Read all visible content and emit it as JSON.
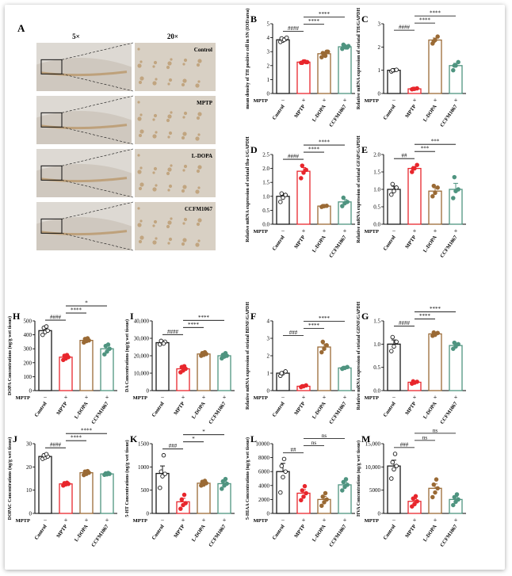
{
  "colors": {
    "control": "#1a1a1a",
    "mptp": "#e8262c",
    "ldopa": "#9a6a35",
    "ccfm": "#4f9480",
    "tissue_bg": "#ddd9d3",
    "tissue_stain": "#b9976a"
  },
  "conditions": [
    "Control",
    "MPTP",
    "L-DOPA",
    "CCFM1067"
  ],
  "mptp_label": "MPTP",
  "mptp_signs": [
    "−",
    "+",
    "+",
    "+"
  ],
  "histology": {
    "panel_letter": "A",
    "col_left": "5×",
    "col_right": "20×",
    "row_labels": [
      "Control",
      "MPTP",
      "L-DOPA",
      "CCFM1067"
    ]
  },
  "chart_data": [
    {
      "panel": "B",
      "type": "bar",
      "ylabel": "mean density of TH positive cell in SN (IOD/area)",
      "ylim": [
        0,
        5
      ],
      "yticks": [
        "0",
        "1",
        "2",
        "3",
        "4",
        "5"
      ],
      "values": [
        3.85,
        2.25,
        2.85,
        3.35
      ],
      "points": [
        [
          3.7,
          3.8,
          3.9,
          3.95,
          3.85,
          4.0
        ],
        [
          2.2,
          2.3,
          2.25,
          2.2,
          2.3,
          2.25
        ],
        [
          2.6,
          2.8,
          3.0,
          2.9,
          2.7,
          3.0
        ],
        [
          3.2,
          3.4,
          3.3,
          3.5,
          3.3,
          3.4
        ]
      ],
      "sig": [
        {
          "from": 0,
          "to": 1,
          "label": "####"
        },
        {
          "from": 1,
          "to": 2,
          "label": "****"
        },
        {
          "from": 1,
          "to": 3,
          "label": "****"
        }
      ]
    },
    {
      "panel": "C",
      "type": "bar",
      "ylabel": "Relative mRNA expression of striatal TH/GAPDH",
      "ylim": [
        0,
        3
      ],
      "yticks": [
        "0",
        "1",
        "2",
        "3"
      ],
      "values": [
        1.0,
        0.2,
        2.3,
        1.2
      ],
      "points": [
        [
          0.95,
          1.0,
          1.02,
          1.0
        ],
        [
          0.18,
          0.2,
          0.22,
          0.2
        ],
        [
          2.15,
          2.3,
          2.45,
          2.25
        ],
        [
          1.0,
          1.2,
          1.35,
          1.2
        ]
      ],
      "sig": [
        {
          "from": 0,
          "to": 1,
          "label": "####"
        },
        {
          "from": 1,
          "to": 2,
          "label": "****"
        },
        {
          "from": 1,
          "to": 3,
          "label": "****"
        }
      ]
    },
    {
      "panel": "D",
      "type": "bar",
      "ylabel": "Relative mRNA expression of striatal Iba-1/GAPDH",
      "ylim": [
        0,
        2.5
      ],
      "yticks": [
        "0.0",
        "0.5",
        "1.0",
        "1.5",
        "2.0",
        "2.5"
      ],
      "values": [
        1.0,
        1.9,
        0.65,
        0.8
      ],
      "points": [
        [
          0.8,
          0.95,
          1.05,
          1.1
        ],
        [
          1.65,
          1.85,
          1.95,
          2.1
        ],
        [
          0.62,
          0.65,
          0.66,
          0.65
        ],
        [
          0.65,
          0.75,
          0.8,
          0.95
        ]
      ],
      "sig": [
        {
          "from": 0,
          "to": 1,
          "label": "####"
        },
        {
          "from": 1,
          "to": 2,
          "label": "****"
        },
        {
          "from": 1,
          "to": 3,
          "label": "****"
        }
      ]
    },
    {
      "panel": "E",
      "type": "bar",
      "ylabel": "Relative mRNA expression of striatal GFAP/GAPDH",
      "ylim": [
        0,
        2.0
      ],
      "yticks": [
        "0.0",
        "0.5",
        "1.0",
        "1.5",
        "2.0"
      ],
      "values": [
        1.0,
        1.6,
        0.95,
        1.0
      ],
      "points": [
        [
          0.85,
          0.95,
          1.05,
          1.15
        ],
        [
          1.5,
          1.6,
          1.7,
          1.6
        ],
        [
          0.8,
          0.9,
          1.05,
          1.1
        ],
        [
          0.75,
          0.95,
          1.0,
          1.35
        ]
      ],
      "sig": [
        {
          "from": 0,
          "to": 1,
          "label": "##"
        },
        {
          "from": 1,
          "to": 2,
          "label": "***"
        },
        {
          "from": 1,
          "to": 3,
          "label": "***"
        }
      ]
    },
    {
      "panel": "H",
      "type": "bar",
      "ylabel": "DOPA Concentrations (ng/g wet tissue)",
      "ylim": [
        0,
        500
      ],
      "yticks": [
        "0",
        "100",
        "200",
        "300",
        "400",
        "500"
      ],
      "values": [
        430,
        240,
        360,
        300
      ],
      "points": [
        [
          400,
          420,
          430,
          450,
          460
        ],
        [
          220,
          230,
          240,
          250,
          255
        ],
        [
          345,
          355,
          360,
          370,
          375
        ],
        [
          260,
          280,
          300,
          320,
          330
        ]
      ],
      "sig": [
        {
          "from": 0,
          "to": 1,
          "label": "####"
        },
        {
          "from": 1,
          "to": 2,
          "label": "****"
        },
        {
          "from": 1,
          "to": 3,
          "label": "*"
        }
      ]
    },
    {
      "panel": "I",
      "type": "bar",
      "ylabel": "DA Concentrations (ng/g wet tissue)",
      "ylim": [
        0,
        40000
      ],
      "yticks": [
        "0",
        "10,000",
        "20,000",
        "30,000",
        "40,000"
      ],
      "values": [
        27500,
        12500,
        21000,
        20000
      ],
      "points": [
        [
          26500,
          27500,
          28000,
          28500,
          27000
        ],
        [
          10500,
          11500,
          12500,
          13500,
          14000
        ],
        [
          20000,
          20500,
          21000,
          21500,
          22000
        ],
        [
          18500,
          19500,
          20000,
          20500,
          21500
        ]
      ],
      "sig": [
        {
          "from": 0,
          "to": 1,
          "label": "####"
        },
        {
          "from": 1,
          "to": 2,
          "label": "****"
        },
        {
          "from": 1,
          "to": 3,
          "label": "****"
        }
      ]
    },
    {
      "panel": "F",
      "type": "bar",
      "ylabel": "Relative mRNA expression of striatal BDNF/GAPDH",
      "ylim": [
        0,
        4
      ],
      "yticks": [
        "0",
        "1",
        "2",
        "3",
        "4"
      ],
      "values": [
        1.0,
        0.25,
        2.5,
        1.3
      ],
      "points": [
        [
          0.85,
          1.0,
          1.1,
          1.0
        ],
        [
          0.2,
          0.25,
          0.3,
          0.25
        ],
        [
          2.2,
          2.4,
          2.6,
          2.8
        ],
        [
          1.25,
          1.3,
          1.35,
          1.3
        ]
      ],
      "sig": [
        {
          "from": 0,
          "to": 1,
          "label": "###"
        },
        {
          "from": 1,
          "to": 2,
          "label": "****"
        },
        {
          "from": 1,
          "to": 3,
          "label": "****"
        }
      ]
    },
    {
      "panel": "G",
      "type": "bar",
      "ylabel": "Relative mRNA expression of striatal GDNF/GAPDH",
      "ylim": [
        0,
        1.5
      ],
      "yticks": [
        "0.0",
        "0.5",
        "1.0",
        "1.5"
      ],
      "values": [
        1.0,
        0.18,
        1.22,
        0.97
      ],
      "points": [
        [
          0.85,
          0.95,
          1.05,
          1.15
        ],
        [
          0.15,
          0.17,
          0.19,
          0.2
        ],
        [
          1.18,
          1.2,
          1.24,
          1.25
        ],
        [
          0.9,
          0.95,
          1.0,
          1.03
        ]
      ],
      "sig": [
        {
          "from": 0,
          "to": 1,
          "label": "####"
        },
        {
          "from": 1,
          "to": 2,
          "label": "****"
        },
        {
          "from": 1,
          "to": 3,
          "label": "****"
        }
      ]
    },
    {
      "panel": "J",
      "type": "bar",
      "ylabel": "DOPAC Concentrations (ng/g wet tissue)",
      "ylim": [
        0,
        30
      ],
      "yticks": [
        "0",
        "10",
        "20",
        "30"
      ],
      "values": [
        24.5,
        12.7,
        17.5,
        17.0
      ],
      "points": [
        [
          23.5,
          24.0,
          24.5,
          25.0,
          25.5
        ],
        [
          12.0,
          12.5,
          12.7,
          13.0,
          13.2
        ],
        [
          16.5,
          17.0,
          17.5,
          18.0,
          18.2
        ],
        [
          16.6,
          16.8,
          17.0,
          17.2,
          17.4
        ]
      ],
      "sig": [
        {
          "from": 0,
          "to": 1,
          "label": "####"
        },
        {
          "from": 1,
          "to": 2,
          "label": "****"
        },
        {
          "from": 1,
          "to": 3,
          "label": "****"
        }
      ]
    },
    {
      "panel": "K",
      "type": "bar",
      "ylabel": "5-HT Concentrations (ng/g wet tissue)",
      "ylim": [
        0,
        1500
      ],
      "yticks": [
        "0",
        "500",
        "1000",
        "1500"
      ],
      "values": [
        860,
        250,
        650,
        640
      ],
      "points": [
        [
          550,
          800,
          850,
          900,
          1250
        ],
        [
          100,
          180,
          220,
          300,
          400
        ],
        [
          600,
          620,
          650,
          680,
          700
        ],
        [
          530,
          600,
          640,
          690,
          740
        ]
      ],
      "sig": [
        {
          "from": 0,
          "to": 1,
          "label": "###"
        },
        {
          "from": 1,
          "to": 2,
          "label": "*"
        },
        {
          "from": 1,
          "to": 3,
          "label": "*"
        }
      ]
    },
    {
      "panel": "L",
      "type": "bar",
      "ylabel": "5-HIAA Concentrations (ng/g wet tissue)",
      "ylim": [
        0,
        10000
      ],
      "yticks": [
        "0",
        "2000",
        "4000",
        "6000",
        "8000",
        "10000"
      ],
      "values": [
        6000,
        2900,
        2000,
        4100
      ],
      "points": [
        [
          3000,
          5200,
          6000,
          6800,
          7800
        ],
        [
          1900,
          2400,
          2900,
          3300,
          3900
        ],
        [
          1100,
          1600,
          2000,
          2400,
          2900
        ],
        [
          3300,
          3800,
          4100,
          4500,
          4900
        ]
      ],
      "sig": [
        {
          "from": 0,
          "to": 1,
          "label": "##"
        },
        {
          "from": 1,
          "to": 2,
          "label": "ns"
        },
        {
          "from": 1,
          "to": 3,
          "label": "ns"
        }
      ]
    },
    {
      "panel": "M",
      "type": "bar",
      "ylabel": "HVA Concentrations (ng/g wet tissue)",
      "ylim": [
        0,
        15000
      ],
      "yticks": [
        "0",
        "5000",
        "10,000",
        "15,000"
      ],
      "values": [
        10200,
        2600,
        5400,
        3000
      ],
      "points": [
        [
          7500,
          9500,
          10200,
          11000,
          12800
        ],
        [
          1500,
          2000,
          2600,
          3200,
          3700
        ],
        [
          3500,
          4500,
          5400,
          6200,
          7300
        ],
        [
          1800,
          2500,
          3000,
          3500,
          4100
        ]
      ],
      "sig": [
        {
          "from": 0,
          "to": 1,
          "label": "###"
        },
        {
          "from": 1,
          "to": 2,
          "label": "ns"
        },
        {
          "from": 1,
          "to": 3,
          "label": "ns"
        }
      ]
    }
  ]
}
